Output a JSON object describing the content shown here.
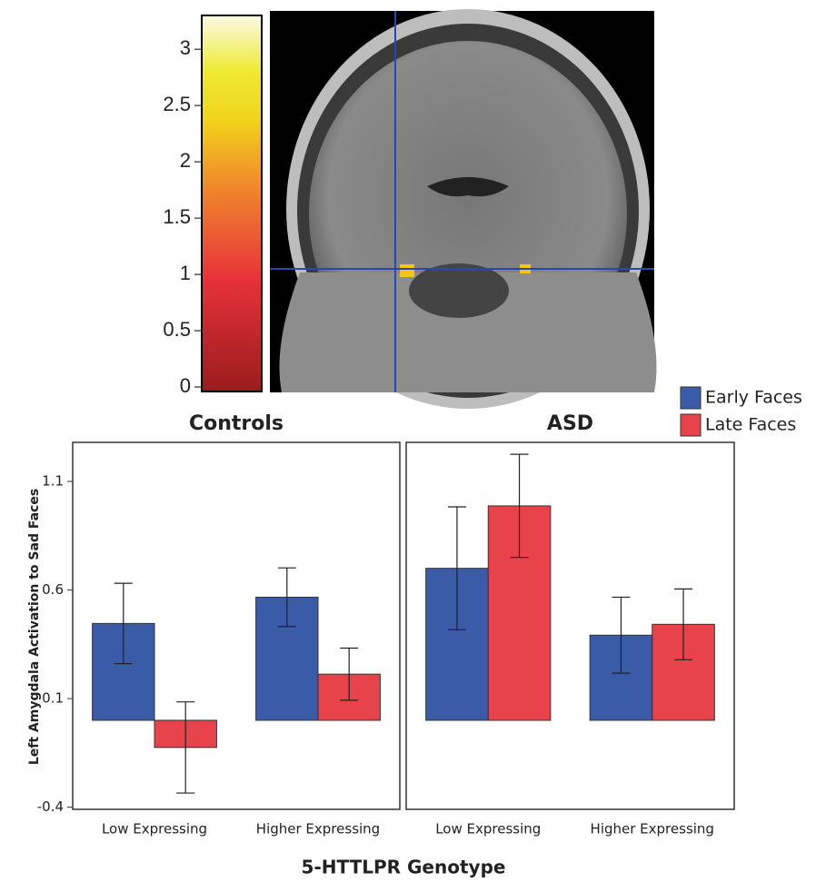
{
  "chart_data": [
    {
      "type": "colorbar",
      "ylim": [
        -0.04,
        3.3
      ],
      "yticks": [
        0,
        0.5,
        1,
        1.5,
        2,
        2.5,
        3
      ]
    },
    {
      "type": "bar",
      "ylabel": "Left Amygdala Activation to Sad Faces",
      "xlabel": "5-HTTLPR Genotype",
      "ylim": [
        -0.41,
        1.28
      ],
      "yticks": [
        -0.4,
        0.1,
        0.6,
        1.1
      ],
      "legend": [
        {
          "name": "Early Faces",
          "color": "#3a5ba8"
        },
        {
          "name": "Late Faces",
          "color": "#e8434a"
        }
      ],
      "panels": [
        {
          "title": "Controls",
          "categories": [
            "Low Expressing",
            "Higher Expressing"
          ],
          "series": [
            {
              "values": [
                0.446,
                0.567
              ],
              "errors": [
                0.185,
                0.135
              ]
            },
            {
              "values": [
                -0.125,
                0.2125
              ],
              "errors": [
                0.21,
                0.12
              ]
            }
          ]
        },
        {
          "title": "ASD",
          "categories": [
            "Low Expressing",
            "Higher Expressing"
          ],
          "series": [
            {
              "values": [
                0.7,
                0.392
              ],
              "errors": [
                0.283,
                0.175
              ]
            },
            {
              "values": [
                0.9875,
                0.442
              ],
              "errors": [
                0.2375,
                0.163
              ]
            }
          ]
        }
      ]
    }
  ]
}
